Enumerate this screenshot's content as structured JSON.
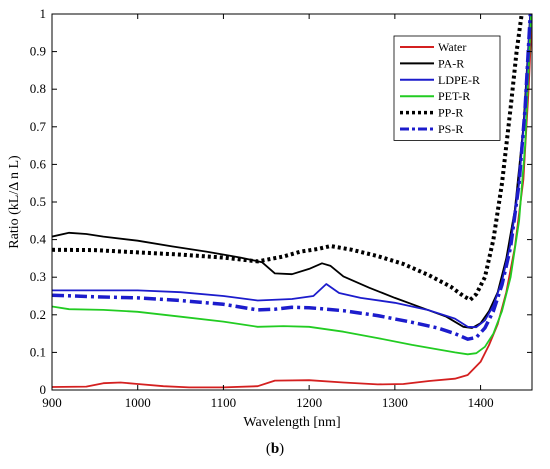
{
  "caption": {
    "open": "(",
    "letter": "b",
    "close": ")"
  },
  "chart_data": {
    "type": "line",
    "xlabel": "Wavelength [nm]",
    "ylabel": "Ratio (kL/Δ n L)",
    "xlim": [
      900,
      1460
    ],
    "ylim": [
      0,
      1
    ],
    "xticks": [
      900,
      1000,
      1100,
      1200,
      1300,
      1400
    ],
    "yticks": [
      0,
      0.1,
      0.2,
      0.3,
      0.4,
      0.5,
      0.6,
      0.7,
      0.8,
      0.9,
      1
    ],
    "ytick_labels": [
      "0",
      "0.1",
      "0.2",
      "0.3",
      "0.4",
      "0.5",
      "0.6",
      "0.7",
      "0.8",
      "0.9",
      "1"
    ],
    "grid": false,
    "legend_position": "top-right",
    "series": [
      {
        "name": "Water",
        "color": "#d42020",
        "style": "solid",
        "points": [
          [
            900,
            0.008
          ],
          [
            940,
            0.009
          ],
          [
            960,
            0.018
          ],
          [
            980,
            0.02
          ],
          [
            1000,
            0.016
          ],
          [
            1030,
            0.01
          ],
          [
            1060,
            0.007
          ],
          [
            1100,
            0.007
          ],
          [
            1140,
            0.01
          ],
          [
            1160,
            0.025
          ],
          [
            1200,
            0.026
          ],
          [
            1240,
            0.02
          ],
          [
            1280,
            0.015
          ],
          [
            1310,
            0.016
          ],
          [
            1340,
            0.024
          ],
          [
            1370,
            0.03
          ],
          [
            1385,
            0.04
          ],
          [
            1400,
            0.075
          ],
          [
            1410,
            0.12
          ],
          [
            1420,
            0.175
          ],
          [
            1430,
            0.26
          ],
          [
            1440,
            0.38
          ],
          [
            1450,
            0.56
          ],
          [
            1456,
            0.8
          ],
          [
            1460,
            1.0
          ]
        ]
      },
      {
        "name": "PA-R",
        "color": "#000000",
        "style": "solid",
        "points": [
          [
            900,
            0.408
          ],
          [
            920,
            0.418
          ],
          [
            940,
            0.415
          ],
          [
            960,
            0.408
          ],
          [
            1000,
            0.397
          ],
          [
            1040,
            0.382
          ],
          [
            1080,
            0.368
          ],
          [
            1120,
            0.352
          ],
          [
            1145,
            0.34
          ],
          [
            1160,
            0.31
          ],
          [
            1180,
            0.308
          ],
          [
            1200,
            0.322
          ],
          [
            1215,
            0.337
          ],
          [
            1225,
            0.33
          ],
          [
            1240,
            0.302
          ],
          [
            1270,
            0.272
          ],
          [
            1300,
            0.245
          ],
          [
            1330,
            0.22
          ],
          [
            1360,
            0.195
          ],
          [
            1380,
            0.168
          ],
          [
            1390,
            0.165
          ],
          [
            1400,
            0.178
          ],
          [
            1410,
            0.21
          ],
          [
            1420,
            0.26
          ],
          [
            1430,
            0.35
          ],
          [
            1440,
            0.48
          ],
          [
            1450,
            0.7
          ],
          [
            1458,
            1.0
          ]
        ]
      },
      {
        "name": "LDPE-R",
        "color": "#1c1ccc",
        "style": "solid",
        "points": [
          [
            900,
            0.265
          ],
          [
            950,
            0.265
          ],
          [
            1000,
            0.265
          ],
          [
            1050,
            0.26
          ],
          [
            1100,
            0.25
          ],
          [
            1140,
            0.238
          ],
          [
            1180,
            0.242
          ],
          [
            1205,
            0.25
          ],
          [
            1220,
            0.282
          ],
          [
            1235,
            0.258
          ],
          [
            1260,
            0.245
          ],
          [
            1300,
            0.232
          ],
          [
            1340,
            0.212
          ],
          [
            1370,
            0.19
          ],
          [
            1385,
            0.168
          ],
          [
            1395,
            0.167
          ],
          [
            1405,
            0.185
          ],
          [
            1415,
            0.225
          ],
          [
            1425,
            0.29
          ],
          [
            1435,
            0.39
          ],
          [
            1445,
            0.55
          ],
          [
            1452,
            0.75
          ],
          [
            1458,
            1.0
          ]
        ]
      },
      {
        "name": "PET-R",
        "color": "#22cc22",
        "style": "solid",
        "points": [
          [
            900,
            0.222
          ],
          [
            920,
            0.215
          ],
          [
            960,
            0.213
          ],
          [
            1000,
            0.208
          ],
          [
            1050,
            0.195
          ],
          [
            1100,
            0.182
          ],
          [
            1140,
            0.168
          ],
          [
            1170,
            0.17
          ],
          [
            1200,
            0.168
          ],
          [
            1240,
            0.155
          ],
          [
            1280,
            0.138
          ],
          [
            1320,
            0.12
          ],
          [
            1350,
            0.108
          ],
          [
            1370,
            0.1
          ],
          [
            1385,
            0.095
          ],
          [
            1395,
            0.098
          ],
          [
            1405,
            0.115
          ],
          [
            1415,
            0.15
          ],
          [
            1425,
            0.21
          ],
          [
            1435,
            0.3
          ],
          [
            1445,
            0.45
          ],
          [
            1452,
            0.65
          ],
          [
            1459,
            1.0
          ]
        ]
      },
      {
        "name": "PP-R",
        "color": "#000000",
        "style": "dotted",
        "points": [
          [
            900,
            0.373
          ],
          [
            950,
            0.372
          ],
          [
            1000,
            0.366
          ],
          [
            1050,
            0.36
          ],
          [
            1100,
            0.352
          ],
          [
            1140,
            0.342
          ],
          [
            1170,
            0.355
          ],
          [
            1190,
            0.368
          ],
          [
            1210,
            0.375
          ],
          [
            1225,
            0.383
          ],
          [
            1250,
            0.373
          ],
          [
            1280,
            0.356
          ],
          [
            1310,
            0.335
          ],
          [
            1340,
            0.305
          ],
          [
            1365,
            0.275
          ],
          [
            1380,
            0.25
          ],
          [
            1388,
            0.24
          ],
          [
            1395,
            0.255
          ],
          [
            1405,
            0.3
          ],
          [
            1415,
            0.4
          ],
          [
            1425,
            0.55
          ],
          [
            1435,
            0.75
          ],
          [
            1442,
            0.9
          ],
          [
            1448,
            1.0
          ]
        ]
      },
      {
        "name": "PS-R",
        "color": "#1c1ccc",
        "style": "dashdot",
        "points": [
          [
            900,
            0.252
          ],
          [
            950,
            0.248
          ],
          [
            1000,
            0.245
          ],
          [
            1050,
            0.238
          ],
          [
            1100,
            0.228
          ],
          [
            1140,
            0.213
          ],
          [
            1160,
            0.215
          ],
          [
            1180,
            0.22
          ],
          [
            1200,
            0.219
          ],
          [
            1240,
            0.211
          ],
          [
            1280,
            0.198
          ],
          [
            1320,
            0.18
          ],
          [
            1350,
            0.165
          ],
          [
            1370,
            0.15
          ],
          [
            1385,
            0.135
          ],
          [
            1395,
            0.14
          ],
          [
            1405,
            0.165
          ],
          [
            1415,
            0.21
          ],
          [
            1425,
            0.28
          ],
          [
            1435,
            0.38
          ],
          [
            1445,
            0.55
          ],
          [
            1452,
            0.75
          ],
          [
            1458,
            1.0
          ]
        ]
      }
    ]
  }
}
